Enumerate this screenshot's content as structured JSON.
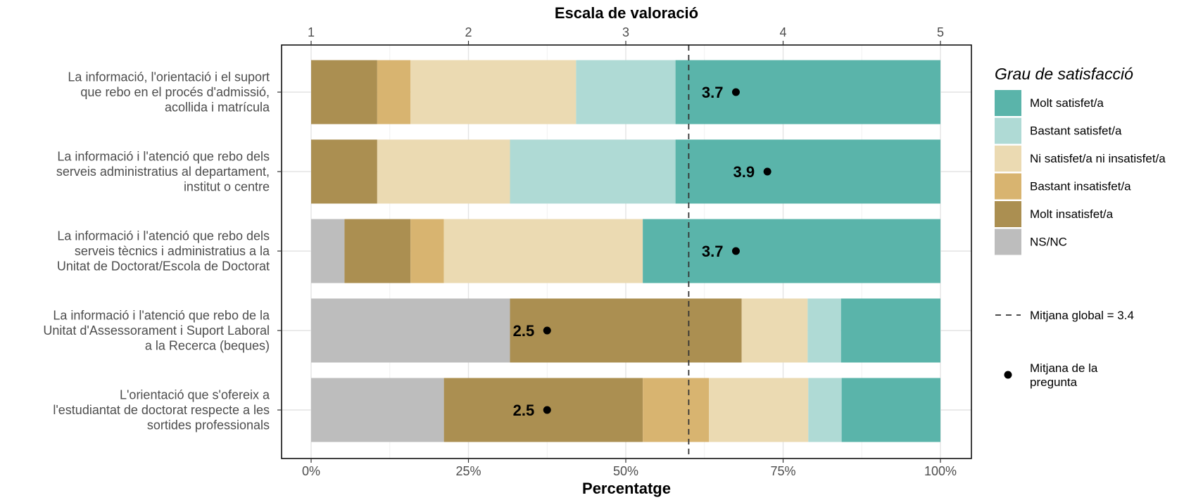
{
  "chart_data": {
    "type": "bar",
    "orientation": "horizontal",
    "stacked": true,
    "xlabel": "Percentatge",
    "x2label": "Escala de valoració",
    "xlim": [
      0,
      100
    ],
    "x_ticks": [
      "0%",
      "25%",
      "50%",
      "75%",
      "100%"
    ],
    "x2_ticks": [
      "1",
      "2",
      "3",
      "4",
      "5"
    ],
    "legend_title": "Grau de satisfacció",
    "legend_position": "right",
    "grid": true,
    "categories": [
      [
        "La informació, l'orientació i el suport",
        "que rebo en el procés d'admissió,",
        "acollida i matrícula"
      ],
      [
        "La informació i l'atenció que rebo dels",
        "serveis administratius al departament,",
        "institut o centre"
      ],
      [
        "La informació i l'atenció que rebo dels",
        "serveis tècnics i administratius a la",
        "Unitat de Doctorat/Escola de Doctorat"
      ],
      [
        "La informació i l'atenció que rebo de la",
        "Unitat d'Assessorament i Suport Laboral",
        "a la Recerca (beques)"
      ],
      [
        "L'orientació que s'ofereix a",
        "l'estudiantat de doctorat respecte a les",
        "sortides professionals"
      ]
    ],
    "series": [
      {
        "name": "NS/NC",
        "color": "#bdbdbd",
        "values": [
          0,
          0,
          5.3,
          31.6,
          21.1
        ]
      },
      {
        "name": "Molt insatisfet/a",
        "color": "#ab8f51",
        "values": [
          10.5,
          10.5,
          10.5,
          36.8,
          31.6
        ]
      },
      {
        "name": "Bastant insatisfet/a",
        "color": "#d8b470",
        "values": [
          5.3,
          0,
          5.3,
          0,
          10.5
        ]
      },
      {
        "name": "Ni satisfet/a ni insatisfet/a",
        "color": "#ebdab2",
        "values": [
          26.3,
          21.1,
          31.6,
          10.5,
          15.8
        ]
      },
      {
        "name": "Bastant satisfet/a",
        "color": "#afdad5",
        "values": [
          15.8,
          26.3,
          0,
          5.3,
          5.3
        ]
      },
      {
        "name": "Molt satisfet/a",
        "color": "#5ab4aa",
        "values": [
          42.1,
          42.1,
          47.3,
          15.8,
          15.7
        ]
      }
    ],
    "question_means": [
      3.7,
      3.9,
      3.7,
      2.5,
      2.5
    ],
    "mean_labels": [
      "3.7",
      "3.9",
      "3.7",
      "2.5",
      "2.5"
    ],
    "global_mean": 3.4,
    "global_mean_label": "Mitjana global = 3.4",
    "question_mean_legend": [
      "Mitjana de la",
      "pregunta"
    ],
    "legend_order": [
      "Molt satisfet/a",
      "Bastant satisfet/a",
      "Ni satisfet/a ni insatisfet/a",
      "Bastant insatisfet/a",
      "Molt insatisfet/a",
      "NS/NC"
    ]
  }
}
